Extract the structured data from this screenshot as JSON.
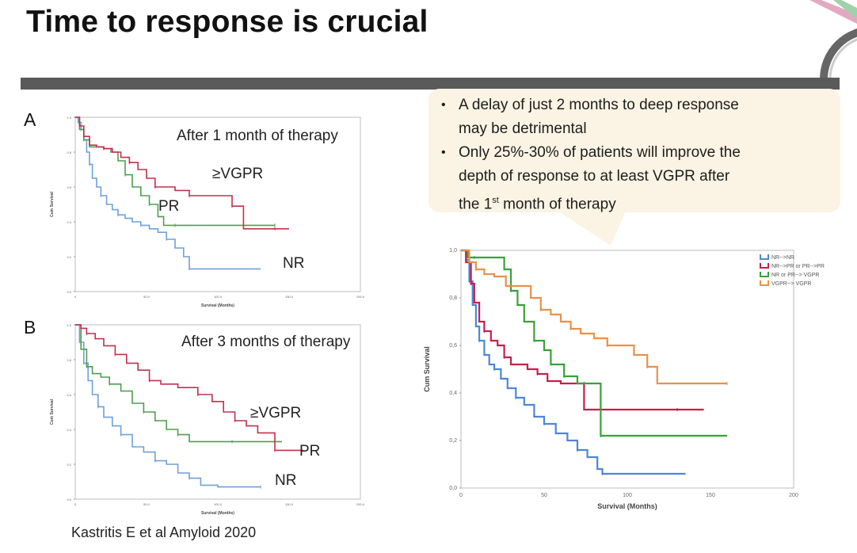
{
  "slide": {
    "title": "Time to response is crucial",
    "citation": "Kastritis E et al Amyloid 2020"
  },
  "callout": {
    "bullets": [
      {
        "lines": [
          "A delay of just 2 months to deep response",
          "may be detrimental"
        ]
      },
      {
        "lines": [
          "Only 25%-30% of patients will improve the",
          "depth of response to at least VGPR after"
        ],
        "last_prefix": "the 1",
        "last_sup": "st",
        "last_suffix": " month of therapy"
      }
    ]
  },
  "panels": {
    "a_letter": "A",
    "a_note": "After 1 month of therapy",
    "b_letter": "B",
    "b_note": "After  3 months of therapy",
    "labels": {
      "vgpr": "≥VGPR",
      "pr": "PR",
      "nr": "NR"
    }
  },
  "colors": {
    "nr": "#6fa0dc",
    "pr": "#4f9e4f",
    "vgpr": "#c2304f",
    "orange": "#e8914a",
    "blue": "#4e86d8",
    "green": "#38a13a",
    "crimson": "#c4204a"
  },
  "chart_data": [
    {
      "type": "line",
      "id": "panel-a",
      "xlabel": "Survival (Months)",
      "ylabel": "Cum Survival",
      "xlim": [
        0,
        200
      ],
      "ylim": [
        0,
        1.0
      ],
      "x_ticks": [
        "0",
        "50.0",
        "100.0",
        "150.0",
        "200.0"
      ],
      "y_ticks": [
        "0.0",
        "0.2",
        "0.4",
        "0.6",
        "0.8",
        "1.0"
      ],
      "series": [
        {
          "name": "NR",
          "color": "#6fa0dc",
          "points": [
            [
              0,
              1.0
            ],
            [
              2,
              0.97
            ],
            [
              4,
              0.93
            ],
            [
              6,
              0.87
            ],
            [
              8,
              0.8
            ],
            [
              10,
              0.73
            ],
            [
              12,
              0.65
            ],
            [
              15,
              0.6
            ],
            [
              18,
              0.55
            ],
            [
              22,
              0.5
            ],
            [
              26,
              0.47
            ],
            [
              30,
              0.44
            ],
            [
              35,
              0.42
            ],
            [
              40,
              0.4
            ],
            [
              46,
              0.38
            ],
            [
              52,
              0.36
            ],
            [
              58,
              0.34
            ],
            [
              64,
              0.3
            ],
            [
              70,
              0.25
            ],
            [
              76,
              0.2
            ],
            [
              80,
              0.13
            ],
            [
              100,
              0.13
            ],
            [
              130,
              0.13
            ]
          ]
        },
        {
          "name": "PR",
          "color": "#4f9e4f",
          "points": [
            [
              0,
              1.0
            ],
            [
              3,
              0.93
            ],
            [
              6,
              0.87
            ],
            [
              10,
              0.83
            ],
            [
              15,
              0.83
            ],
            [
              20,
              0.82
            ],
            [
              25,
              0.8
            ],
            [
              30,
              0.75
            ],
            [
              35,
              0.67
            ],
            [
              40,
              0.6
            ],
            [
              46,
              0.55
            ],
            [
              52,
              0.5
            ],
            [
              58,
              0.43
            ],
            [
              62,
              0.38
            ],
            [
              70,
              0.38
            ],
            [
              90,
              0.38
            ],
            [
              110,
              0.38
            ],
            [
              140,
              0.38
            ]
          ]
        },
        {
          "name": "≥VGPR",
          "color": "#c2304f",
          "points": [
            [
              0,
              1.0
            ],
            [
              3,
              0.95
            ],
            [
              6,
              0.89
            ],
            [
              10,
              0.84
            ],
            [
              15,
              0.83
            ],
            [
              20,
              0.82
            ],
            [
              26,
              0.8
            ],
            [
              32,
              0.77
            ],
            [
              38,
              0.74
            ],
            [
              44,
              0.7
            ],
            [
              50,
              0.65
            ],
            [
              56,
              0.6
            ],
            [
              60,
              0.6
            ],
            [
              70,
              0.58
            ],
            [
              80,
              0.55
            ],
            [
              90,
              0.55
            ],
            [
              105,
              0.55
            ],
            [
              110,
              0.49
            ],
            [
              118,
              0.49
            ],
            [
              118,
              0.36
            ],
            [
              140,
              0.36
            ],
            [
              150,
              0.36
            ]
          ]
        }
      ]
    },
    {
      "type": "line",
      "id": "panel-b",
      "xlabel": "Survival (Months)",
      "ylabel": "Cum Survival",
      "xlim": [
        0,
        200
      ],
      "ylim": [
        0,
        1.0
      ],
      "x_ticks": [
        "0",
        "50.0",
        "100.0",
        "150.0",
        "200.0"
      ],
      "y_ticks": [
        "0.0",
        "0.2",
        "0.4",
        "0.6",
        "0.8",
        "1.0"
      ],
      "series": [
        {
          "name": "NR",
          "color": "#6fa0dc",
          "points": [
            [
              0,
              1.0
            ],
            [
              3,
              0.9
            ],
            [
              6,
              0.78
            ],
            [
              9,
              0.68
            ],
            [
              12,
              0.6
            ],
            [
              16,
              0.53
            ],
            [
              20,
              0.47
            ],
            [
              26,
              0.42
            ],
            [
              32,
              0.37
            ],
            [
              40,
              0.3
            ],
            [
              48,
              0.27
            ],
            [
              56,
              0.22
            ],
            [
              64,
              0.2
            ],
            [
              72,
              0.15
            ],
            [
              80,
              0.12
            ],
            [
              88,
              0.08
            ],
            [
              100,
              0.07
            ],
            [
              130,
              0.07
            ]
          ]
        },
        {
          "name": "PR",
          "color": "#4f9e4f",
          "points": [
            [
              0,
              1.0
            ],
            [
              4,
              0.86
            ],
            [
              8,
              0.76
            ],
            [
              12,
              0.72
            ],
            [
              18,
              0.7
            ],
            [
              24,
              0.66
            ],
            [
              32,
              0.62
            ],
            [
              40,
              0.55
            ],
            [
              48,
              0.5
            ],
            [
              56,
              0.45
            ],
            [
              64,
              0.4
            ],
            [
              72,
              0.37
            ],
            [
              80,
              0.33
            ],
            [
              90,
              0.33
            ],
            [
              110,
              0.33
            ],
            [
              145,
              0.33
            ]
          ]
        },
        {
          "name": "≥VGPR",
          "color": "#c2304f",
          "points": [
            [
              0,
              1.0
            ],
            [
              4,
              0.98
            ],
            [
              8,
              0.95
            ],
            [
              14,
              0.92
            ],
            [
              20,
              0.88
            ],
            [
              28,
              0.83
            ],
            [
              36,
              0.78
            ],
            [
              44,
              0.74
            ],
            [
              52,
              0.68
            ],
            [
              60,
              0.66
            ],
            [
              72,
              0.64
            ],
            [
              86,
              0.6
            ],
            [
              96,
              0.56
            ],
            [
              104,
              0.5
            ],
            [
              112,
              0.45
            ],
            [
              120,
              0.42
            ],
            [
              128,
              0.38
            ],
            [
              140,
              0.28
            ],
            [
              160,
              0.28
            ]
          ]
        }
      ]
    },
    {
      "type": "line",
      "id": "right-chart",
      "xlabel": "Survival (Months)",
      "ylabel": "Cum Survival",
      "xlim": [
        0,
        200
      ],
      "ylim": [
        0,
        1.0
      ],
      "x_ticks": [
        "0",
        "50",
        "100",
        "150",
        "200"
      ],
      "y_ticks": [
        "0,0",
        "0,2",
        "0,4",
        "0,6",
        "0,8",
        "1,0"
      ],
      "legend_position": "top-right",
      "series": [
        {
          "name": "NR-->NR",
          "color": "#4e86d8",
          "points": [
            [
              0,
              1.0
            ],
            [
              3,
              0.96
            ],
            [
              5,
              0.87
            ],
            [
              7,
              0.77
            ],
            [
              9,
              0.68
            ],
            [
              11,
              0.62
            ],
            [
              14,
              0.56
            ],
            [
              17,
              0.52
            ],
            [
              20,
              0.5
            ],
            [
              24,
              0.46
            ],
            [
              28,
              0.42
            ],
            [
              33,
              0.38
            ],
            [
              38,
              0.35
            ],
            [
              44,
              0.3
            ],
            [
              50,
              0.27
            ],
            [
              57,
              0.23
            ],
            [
              64,
              0.2
            ],
            [
              70,
              0.16
            ],
            [
              76,
              0.13
            ],
            [
              82,
              0.08
            ],
            [
              85,
              0.06
            ],
            [
              120,
              0.06
            ],
            [
              135,
              0.06
            ]
          ]
        },
        {
          "name": "NR-->PR or PR-->PR",
          "color": "#c4204a",
          "points": [
            [
              0,
              1.0
            ],
            [
              3,
              0.95
            ],
            [
              6,
              0.86
            ],
            [
              8,
              0.78
            ],
            [
              11,
              0.7
            ],
            [
              14,
              0.66
            ],
            [
              18,
              0.62
            ],
            [
              22,
              0.6
            ],
            [
              26,
              0.55
            ],
            [
              30,
              0.52
            ],
            [
              40,
              0.5
            ],
            [
              46,
              0.48
            ],
            [
              52,
              0.45
            ],
            [
              60,
              0.44
            ],
            [
              74,
              0.44
            ],
            [
              74,
              0.33
            ],
            [
              90,
              0.33
            ],
            [
              130,
              0.33
            ],
            [
              146,
              0.33
            ]
          ]
        },
        {
          "name": "NR or PR--> VGPR",
          "color": "#38a13a",
          "points": [
            [
              0,
              1.0
            ],
            [
              4,
              0.97
            ],
            [
              8,
              0.97
            ],
            [
              22,
              0.97
            ],
            [
              26,
              0.92
            ],
            [
              30,
              0.83
            ],
            [
              34,
              0.77
            ],
            [
              38,
              0.7
            ],
            [
              44,
              0.62
            ],
            [
              50,
              0.58
            ],
            [
              54,
              0.52
            ],
            [
              62,
              0.47
            ],
            [
              70,
              0.44
            ],
            [
              84,
              0.44
            ],
            [
              84,
              0.22
            ],
            [
              110,
              0.22
            ],
            [
              160,
              0.22
            ]
          ]
        },
        {
          "name": "VGPR--> VGPR",
          "color": "#e8914a",
          "points": [
            [
              0,
              1.0
            ],
            [
              5,
              0.95
            ],
            [
              9,
              0.92
            ],
            [
              14,
              0.9
            ],
            [
              20,
              0.89
            ],
            [
              27,
              0.89
            ],
            [
              27,
              0.85
            ],
            [
              42,
              0.8
            ],
            [
              48,
              0.75
            ],
            [
              54,
              0.73
            ],
            [
              60,
              0.7
            ],
            [
              66,
              0.67
            ],
            [
              72,
              0.65
            ],
            [
              80,
              0.63
            ],
            [
              88,
              0.6
            ],
            [
              96,
              0.6
            ],
            [
              104,
              0.56
            ],
            [
              112,
              0.51
            ],
            [
              118,
              0.44
            ],
            [
              135,
              0.44
            ],
            [
              160,
              0.44
            ]
          ]
        }
      ]
    }
  ]
}
